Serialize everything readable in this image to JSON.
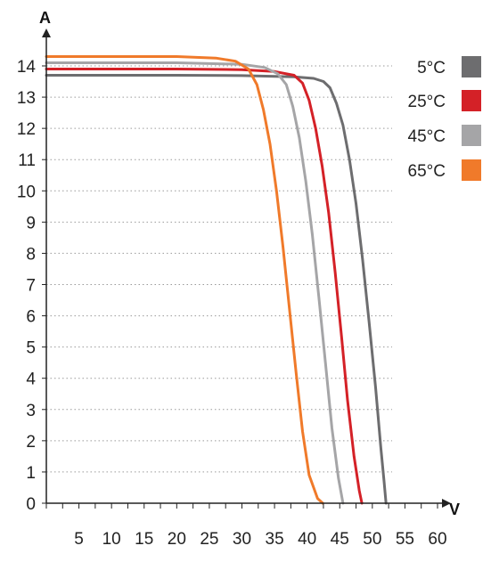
{
  "chart_data": {
    "type": "line",
    "title": "",
    "xlabel": "V",
    "ylabel": "A",
    "xlim": [
      0,
      60
    ],
    "ylim": [
      0,
      14.5
    ],
    "x_ticks": [
      5,
      10,
      15,
      20,
      25,
      30,
      35,
      40,
      45,
      50,
      55,
      60
    ],
    "y_ticks": [
      0,
      1,
      2,
      3,
      4,
      5,
      6,
      7,
      8,
      9,
      10,
      11,
      12,
      13,
      14
    ],
    "grid": "horizontal dotted",
    "legend_position": "right",
    "series": [
      {
        "name": "5°C",
        "color": "#6d6d6f",
        "points": [
          [
            0,
            13.7
          ],
          [
            20,
            13.7
          ],
          [
            30,
            13.69
          ],
          [
            38,
            13.65
          ],
          [
            41,
            13.6
          ],
          [
            42.5,
            13.5
          ],
          [
            43.5,
            13.3
          ],
          [
            44.5,
            12.8
          ],
          [
            45.5,
            12.1
          ],
          [
            46.5,
            11.0
          ],
          [
            47.5,
            9.6
          ],
          [
            48.5,
            7.8
          ],
          [
            49.5,
            5.8
          ],
          [
            50.5,
            3.7
          ],
          [
            51.3,
            1.8
          ],
          [
            51.8,
            0.7
          ],
          [
            52.1,
            0
          ]
        ]
      },
      {
        "name": "25°C",
        "color": "#d42127",
        "points": [
          [
            0,
            13.9
          ],
          [
            20,
            13.9
          ],
          [
            30,
            13.88
          ],
          [
            35,
            13.82
          ],
          [
            38,
            13.7
          ],
          [
            39.3,
            13.45
          ],
          [
            40.3,
            12.9
          ],
          [
            41.3,
            12.0
          ],
          [
            42.3,
            10.8
          ],
          [
            43.3,
            9.3
          ],
          [
            44.3,
            7.4
          ],
          [
            45.3,
            5.3
          ],
          [
            46.2,
            3.3
          ],
          [
            47.2,
            1.5
          ],
          [
            48,
            0.4
          ],
          [
            48.4,
            0
          ]
        ]
      },
      {
        "name": "45°C",
        "color": "#a5a5a7",
        "points": [
          [
            0,
            14.1
          ],
          [
            20,
            14.1
          ],
          [
            30,
            14.05
          ],
          [
            33.5,
            13.95
          ],
          [
            35.5,
            13.75
          ],
          [
            36.8,
            13.4
          ],
          [
            37.8,
            12.7
          ],
          [
            38.8,
            11.7
          ],
          [
            39.8,
            10.3
          ],
          [
            40.8,
            8.6
          ],
          [
            41.8,
            6.6
          ],
          [
            42.8,
            4.5
          ],
          [
            43.8,
            2.4
          ],
          [
            44.8,
            0.8
          ],
          [
            45.5,
            0
          ]
        ]
      },
      {
        "name": "65°C",
        "color": "#f07a2a",
        "points": [
          [
            0,
            14.3
          ],
          [
            20,
            14.3
          ],
          [
            26,
            14.25
          ],
          [
            29,
            14.15
          ],
          [
            31,
            13.9
          ],
          [
            32.3,
            13.4
          ],
          [
            33.3,
            12.6
          ],
          [
            34.3,
            11.5
          ],
          [
            35.3,
            10.0
          ],
          [
            36.3,
            8.2
          ],
          [
            37.3,
            6.2
          ],
          [
            38.3,
            4.2
          ],
          [
            39.3,
            2.3
          ],
          [
            40.3,
            0.9
          ],
          [
            41.6,
            0.15
          ],
          [
            42.4,
            0
          ]
        ]
      }
    ]
  }
}
